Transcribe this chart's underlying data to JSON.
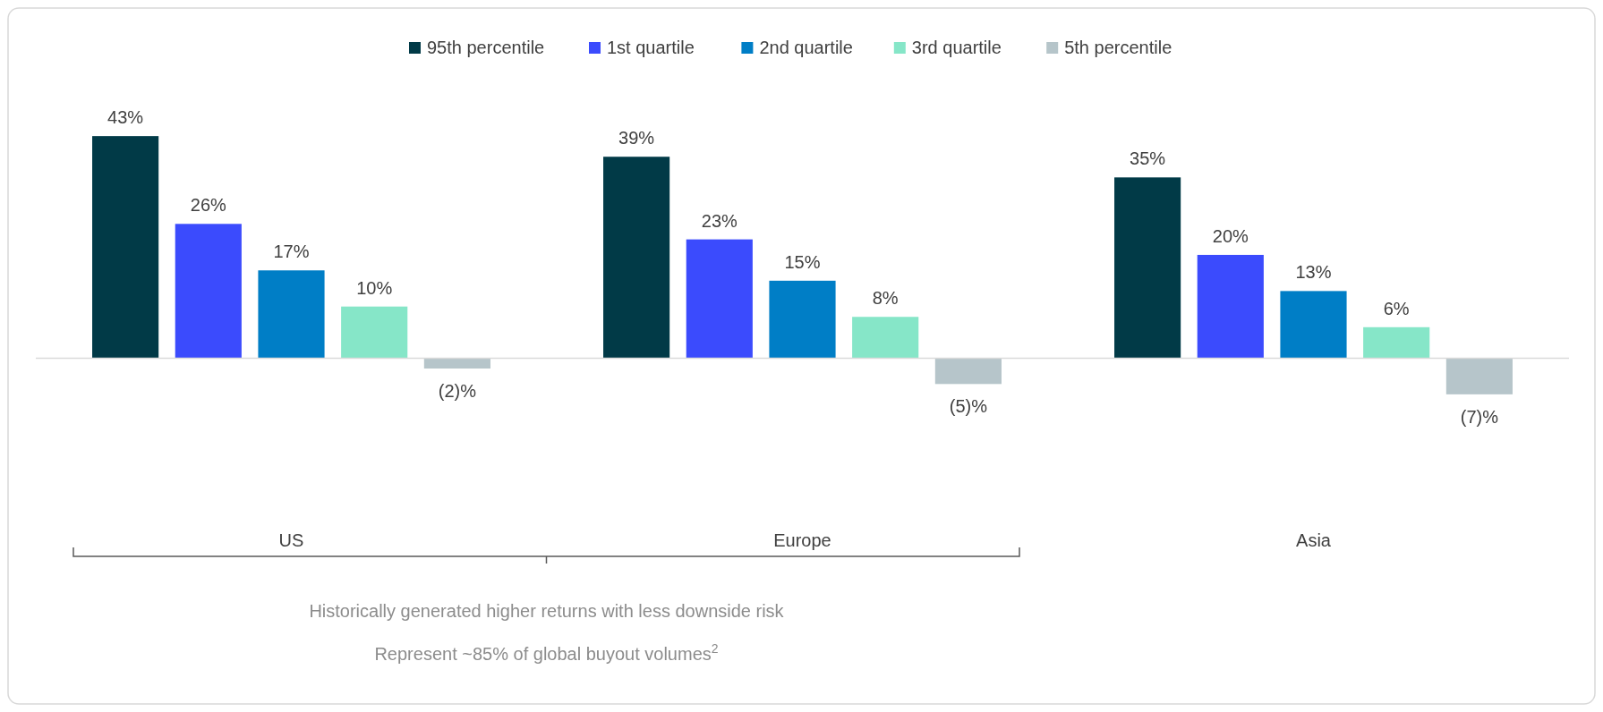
{
  "chart_data": {
    "type": "bar",
    "categories": [
      "US",
      "Europe",
      "Asia"
    ],
    "series": [
      {
        "name": "95th percentile",
        "color": "#013a47",
        "values": [
          43,
          39,
          35
        ],
        "value_labels": [
          "43%",
          "39%",
          "35%"
        ]
      },
      {
        "name": "1st quartile",
        "color": "#3b4bfd",
        "values": [
          26,
          23,
          20
        ],
        "value_labels": [
          "26%",
          "23%",
          "20%"
        ]
      },
      {
        "name": "2nd quartile",
        "color": "#007ec6",
        "values": [
          17,
          15,
          13
        ],
        "value_labels": [
          "17%",
          "15%",
          "13%"
        ]
      },
      {
        "name": "3rd quartile",
        "color": "#86e6c8",
        "values": [
          10,
          8,
          6
        ],
        "value_labels": [
          "10%",
          "8%",
          "6%"
        ]
      },
      {
        "name": "5th percentile",
        "color": "#b6c5ca",
        "values": [
          -2,
          -5,
          -7
        ],
        "value_labels": [
          "(2)%",
          "(5)%",
          "(7)%"
        ]
      }
    ],
    "legend": "top",
    "grid": false,
    "annotations": [
      "Historically generated higher returns with less downside risk",
      "Represent ~85% of global buyout volumes$^{2}$"
    ]
  }
}
